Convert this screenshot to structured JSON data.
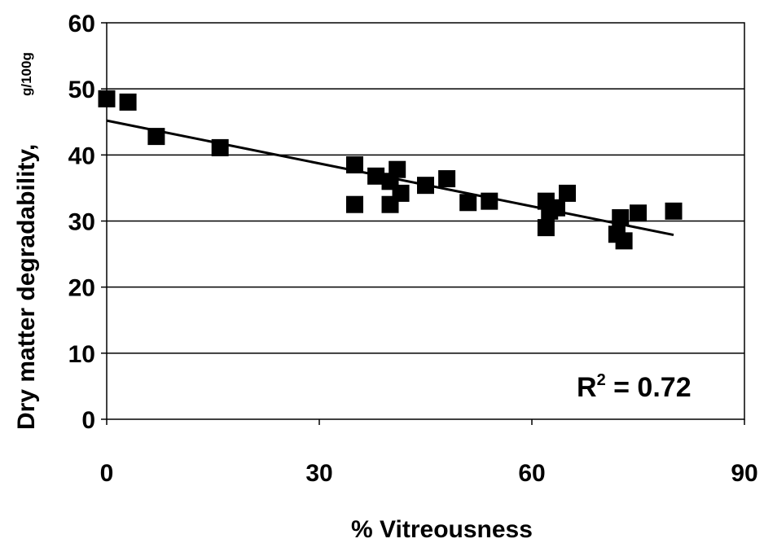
{
  "chart_data": {
    "type": "scatter",
    "xlabel": "% Vitreousness",
    "ylabel": "Dry matter degradability,",
    "ylabel_unit": "g/100g",
    "xlim": [
      0,
      90
    ],
    "ylim": [
      0,
      60
    ],
    "x_ticks": [
      0,
      30,
      60,
      90
    ],
    "y_ticks": [
      0,
      10,
      20,
      30,
      40,
      50,
      60
    ],
    "grid": "horizontal",
    "marker_color": "#000000",
    "annotation": {
      "base": "R",
      "sup": "2",
      "rest": " = 0.72"
    },
    "trendline": {
      "x": [
        0,
        80
      ],
      "y": [
        45.2,
        27.9
      ]
    },
    "points": [
      {
        "x": 0,
        "y": 48.5
      },
      {
        "x": 3,
        "y": 48
      },
      {
        "x": 7,
        "y": 42.8
      },
      {
        "x": 16,
        "y": 41.1
      },
      {
        "x": 35,
        "y": 38.5
      },
      {
        "x": 35,
        "y": 32.5
      },
      {
        "x": 38,
        "y": 36.8
      },
      {
        "x": 40,
        "y": 36
      },
      {
        "x": 40,
        "y": 32.5
      },
      {
        "x": 41,
        "y": 37.8
      },
      {
        "x": 41.5,
        "y": 34.2
      },
      {
        "x": 45,
        "y": 35.4
      },
      {
        "x": 48,
        "y": 36.4
      },
      {
        "x": 51,
        "y": 32.8
      },
      {
        "x": 54,
        "y": 33
      },
      {
        "x": 62,
        "y": 33
      },
      {
        "x": 62,
        "y": 29
      },
      {
        "x": 62.5,
        "y": 31.5
      },
      {
        "x": 63.5,
        "y": 32
      },
      {
        "x": 65,
        "y": 34.2
      },
      {
        "x": 72,
        "y": 28
      },
      {
        "x": 72.5,
        "y": 30.5
      },
      {
        "x": 73,
        "y": 27
      },
      {
        "x": 75,
        "y": 31.2
      },
      {
        "x": 80,
        "y": 31.5
      }
    ]
  }
}
